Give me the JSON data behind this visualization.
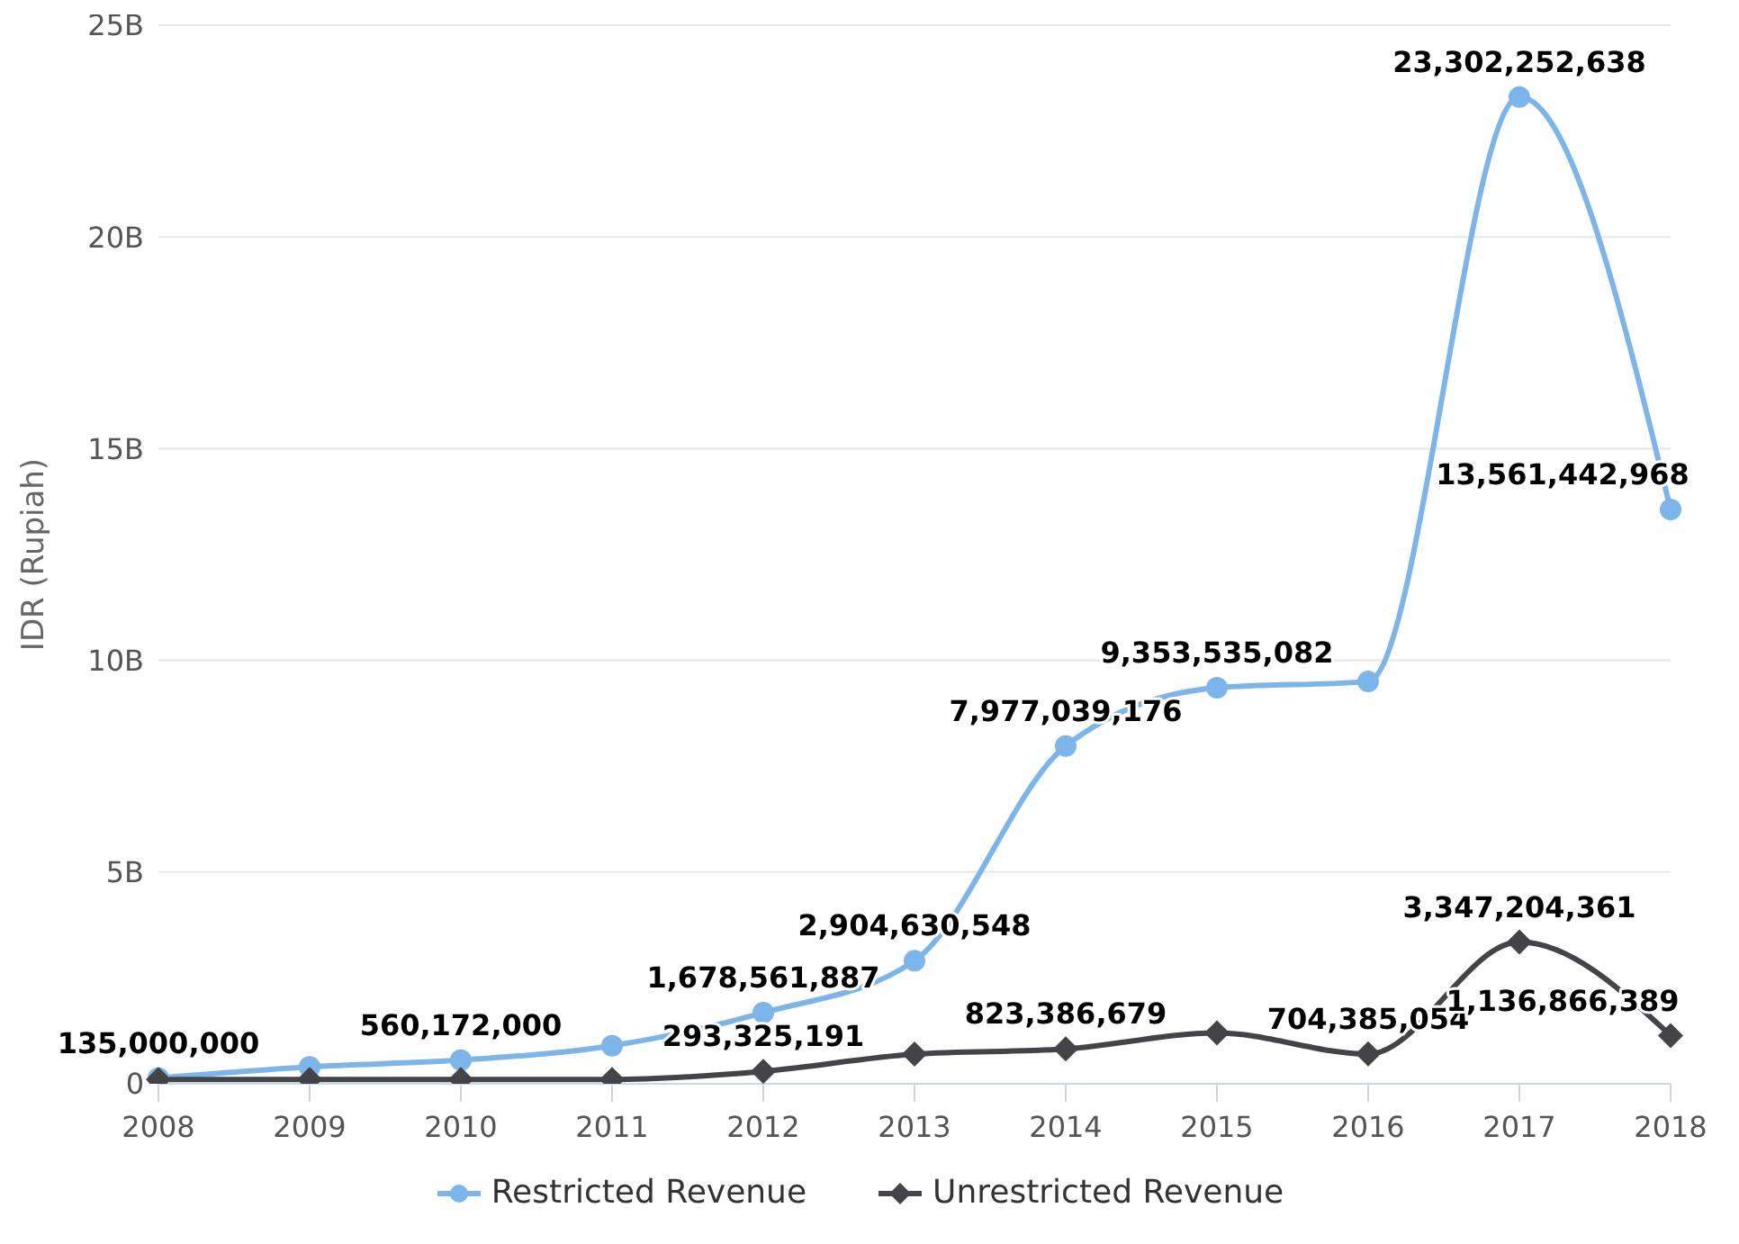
{
  "chart_data": {
    "type": "line",
    "ylabel": "IDR (Rupiah)",
    "categories": [
      "2008",
      "2009",
      "2010",
      "2011",
      "2012",
      "2013",
      "2014",
      "2015",
      "2016",
      "2017",
      "2018"
    ],
    "series": [
      {
        "name": "Restricted Revenue",
        "color": "#7cb5ec",
        "marker": "circle",
        "values": [
          135000000,
          400000000,
          560172000,
          900000000,
          1678561887,
          2904630548,
          7977039176,
          9353535082,
          9500000000,
          23302252638,
          13561442968
        ],
        "value_labels": [
          "135,000,000",
          null,
          "560,172,000",
          null,
          "1,678,561,887",
          "2,904,630,548",
          "7,977,039,176",
          "9,353,535,082",
          null,
          "23,302,252,638",
          "13,561,442,968"
        ]
      },
      {
        "name": "Unrestricted Revenue",
        "color": "#434348",
        "marker": "diamond",
        "values": [
          100000000,
          100000000,
          100000000,
          100000000,
          293325191,
          700000000,
          823386679,
          1200000000,
          704385054,
          3347204361,
          1136866389
        ],
        "value_labels": [
          null,
          null,
          null,
          null,
          "293,325,191",
          null,
          "823,386,679",
          null,
          "704,385,054",
          "3,347,204,361",
          "1,136,866,389"
        ]
      }
    ],
    "ylim": [
      0,
      25000000000
    ],
    "yticks": [
      {
        "value": 0,
        "label": "0"
      },
      {
        "value": 5000000000,
        "label": "5B"
      },
      {
        "value": 10000000000,
        "label": "10B"
      },
      {
        "value": 15000000000,
        "label": "15B"
      },
      {
        "value": 20000000000,
        "label": "20B"
      },
      {
        "value": 25000000000,
        "label": "25B"
      }
    ],
    "grid": "y",
    "legend": "bottom",
    "line_style": "solid"
  }
}
